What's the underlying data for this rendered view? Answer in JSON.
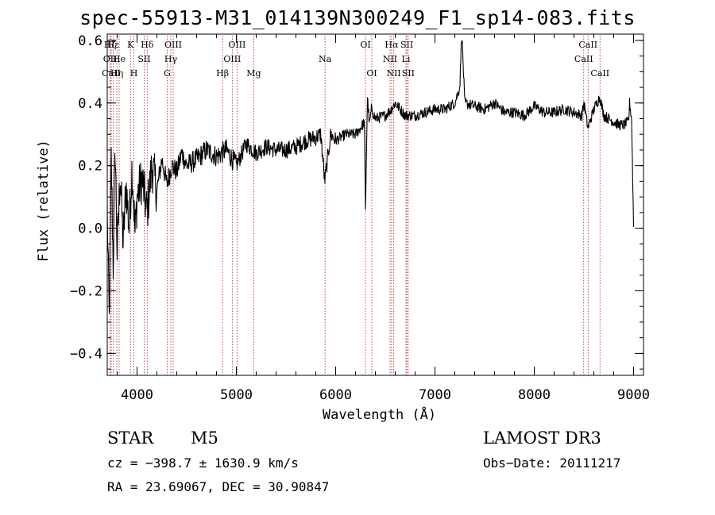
{
  "chart_data": {
    "type": "line",
    "title": "spec-55913-M31_014139N300249_F1_sp14-083.fits",
    "xlabel": "Wavelength (Å)",
    "ylabel": "Flux (relative)",
    "xlim": [
      3700,
      9100
    ],
    "ylim": [
      -0.47,
      0.62
    ],
    "xticks": [
      4000,
      5000,
      6000,
      7000,
      8000,
      9000
    ],
    "xtick_labels": [
      "4000",
      "5000",
      "6000",
      "7000",
      "8000",
      "9000"
    ],
    "yticks": [
      -0.4,
      -0.2,
      0.0,
      0.2,
      0.4,
      0.6
    ],
    "ytick_labels": [
      "−0.4",
      "−0.2",
      "0.0",
      "0.2",
      "0.4",
      "0.6"
    ],
    "x_minor_step": 200,
    "y_minor_step": 0.05,
    "grid": false,
    "line_color": "#000000",
    "marker_color": "#b22222",
    "series": [
      {
        "name": "flux",
        "x": [
          3700,
          3720,
          3740,
          3760,
          3780,
          3800,
          3830,
          3860,
          3890,
          3920,
          3950,
          3980,
          4000,
          4050,
          4100,
          4150,
          4200,
          4250,
          4300,
          4350,
          4400,
          4450,
          4500,
          4600,
          4700,
          4800,
          4900,
          5000,
          5100,
          5200,
          5300,
          5400,
          5500,
          5600,
          5700,
          5800,
          5850,
          5890,
          5950,
          6000,
          6100,
          6200,
          6250,
          6290,
          6300,
          6320,
          6340,
          6360,
          6400,
          6500,
          6560,
          6600,
          6700,
          6800,
          6900,
          7000,
          7100,
          7200,
          7250,
          7270,
          7300,
          7400,
          7500,
          7600,
          7700,
          7800,
          7900,
          8000,
          8100,
          8200,
          8300,
          8400,
          8480,
          8500,
          8540,
          8600,
          8660,
          8700,
          8800,
          8850,
          8900,
          8950,
          8960,
          8980,
          9000
        ],
        "y": [
          0.05,
          -0.3,
          0.22,
          -0.12,
          0.26,
          -0.08,
          0.18,
          -0.05,
          0.14,
          0.0,
          0.2,
          -0.02,
          0.1,
          0.16,
          0.05,
          0.2,
          0.12,
          0.22,
          0.14,
          0.2,
          0.18,
          0.24,
          0.2,
          0.22,
          0.25,
          0.23,
          0.25,
          0.2,
          0.27,
          0.24,
          0.26,
          0.25,
          0.25,
          0.26,
          0.28,
          0.29,
          0.3,
          0.15,
          0.3,
          0.28,
          0.3,
          0.3,
          0.32,
          0.34,
          0.05,
          0.42,
          0.33,
          0.38,
          0.35,
          0.36,
          0.38,
          0.4,
          0.36,
          0.36,
          0.37,
          0.38,
          0.38,
          0.4,
          0.45,
          0.63,
          0.4,
          0.39,
          0.38,
          0.4,
          0.37,
          0.37,
          0.36,
          0.39,
          0.37,
          0.37,
          0.38,
          0.37,
          0.36,
          0.4,
          0.32,
          0.38,
          0.42,
          0.36,
          0.34,
          0.33,
          0.33,
          0.34,
          0.4,
          0.35,
          0.01
        ]
      }
    ],
    "lines": [
      {
        "name": "Hζ",
        "x": 3729,
        "row": 1
      },
      {
        "name": "OII",
        "x": 3729,
        "row": 2
      },
      {
        "name": "CaII",
        "x": 3740,
        "row": 3
      },
      {
        "name": "Hε",
        "x": 3760,
        "row": 1
      },
      {
        "name": "Hη",
        "x": 3797,
        "row": 3
      },
      {
        "name": "He",
        "x": 3820,
        "row": 2
      },
      {
        "name": "K",
        "x": 3934,
        "row": 1
      },
      {
        "name": "H",
        "x": 3968,
        "row": 3
      },
      {
        "name": "SII",
        "x": 4072,
        "row": 2
      },
      {
        "name": "Hδ",
        "x": 4102,
        "row": 1
      },
      {
        "name": "OIII",
        "x": 4364,
        "row": 1
      },
      {
        "name": "Hγ",
        "x": 4340,
        "row": 2
      },
      {
        "name": "G",
        "x": 4304,
        "row": 3
      },
      {
        "name": "Hβ",
        "x": 4861,
        "row": 3
      },
      {
        "name": "OIII",
        "x": 4959,
        "row": 2
      },
      {
        "name": "OIII",
        "x": 5007,
        "row": 1
      },
      {
        "name": "Mg",
        "x": 5175,
        "row": 3
      },
      {
        "name": "Na",
        "x": 5893,
        "row": 2
      },
      {
        "name": "OI",
        "x": 6300,
        "row": 1
      },
      {
        "name": "OI",
        "x": 6364,
        "row": 3
      },
      {
        "name": "Hα",
        "x": 6563,
        "row": 1
      },
      {
        "name": "NII",
        "x": 6548,
        "row": 2
      },
      {
        "name": "NII",
        "x": 6584,
        "row": 3
      },
      {
        "name": "SII",
        "x": 6717,
        "row": 1
      },
      {
        "name": "Li",
        "x": 6708,
        "row": 2
      },
      {
        "name": "SII",
        "x": 6731,
        "row": 3
      },
      {
        "name": "CaII",
        "x": 8542,
        "row": 1
      },
      {
        "name": "CaII",
        "x": 8498,
        "row": 2
      },
      {
        "name": "CaII",
        "x": 8662,
        "row": 3
      }
    ]
  },
  "info": {
    "object_class": "STAR",
    "subclass": "M5",
    "survey": "LAMOST DR3",
    "cz_text": "cz = −398.7 ± 1630.9 km/s",
    "obs_date_text": "Obs−Date: 20111217",
    "radec_text": "RA =  23.69067, DEC =  30.90847"
  }
}
